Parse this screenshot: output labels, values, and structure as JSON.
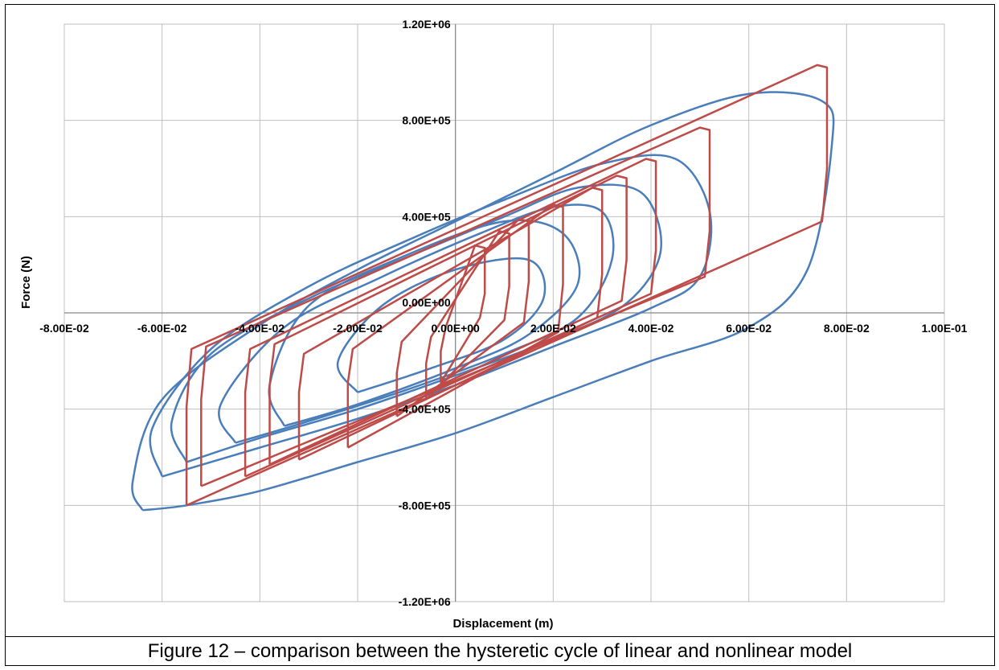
{
  "caption": "Figure 12 – comparison between the hysteretic cycle of linear and nonlinear model",
  "chart_data": {
    "type": "line",
    "title": "",
    "xlabel": "Displacement (m)",
    "ylabel": "Force (N)",
    "xlim": [
      -0.08,
      0.1
    ],
    "ylim": [
      -1200000,
      1200000
    ],
    "x_ticks": [
      -0.08,
      -0.06,
      -0.04,
      -0.02,
      0.0,
      0.02,
      0.04,
      0.06,
      0.08,
      0.1
    ],
    "x_tick_labels": [
      "-8.00E-02",
      "-6.00E-02",
      "-4.00E-02",
      "-2.00E-02",
      "0.00E+00",
      "2.00E-02",
      "4.00E-02",
      "6.00E-02",
      "8.00E-02",
      "1.00E-01"
    ],
    "y_ticks": [
      -1200000,
      -800000,
      -400000,
      0,
      400000,
      800000,
      1200000
    ],
    "y_tick_labels": [
      "-1.20E+06",
      "-8.00E+05",
      "-4.00E+05",
      "0.00E+00",
      "4.00E+05",
      "8.00E+05",
      "1.20E+06"
    ],
    "grid": true,
    "legend": "none",
    "colors": {
      "series_1": "#4a7ebb",
      "series_2": "#be4b48"
    },
    "series": [
      {
        "style": "smooth-loops",
        "loops": [
          {
            "x": [
              -0.064,
              -0.055,
              -0.04,
              -0.02,
              0.0,
              0.02,
              0.04,
              0.06,
              0.072,
              0.077,
              0.075,
              0.06,
              0.04,
              0.02,
              0.0,
              -0.02,
              -0.04,
              -0.06,
              -0.066,
              -0.064
            ],
            "y": [
              -820000,
              -800000,
              -740000,
              -620000,
              -500000,
              -350000,
              -200000,
              -60000,
              180000,
              700000,
              880000,
              910000,
              780000,
              580000,
              380000,
              180000,
              -50000,
              -360000,
              -700000,
              -820000
            ]
          },
          {
            "x": [
              -0.06,
              -0.04,
              -0.02,
              0.0,
              0.02,
              0.04,
              0.05,
              0.052,
              0.045,
              0.03,
              0.01,
              -0.01,
              -0.03,
              -0.05,
              -0.062,
              -0.06
            ],
            "y": [
              -680000,
              -560000,
              -440000,
              -300000,
              -140000,
              20000,
              150000,
              420000,
              640000,
              620000,
              470000,
              300000,
              110000,
              -150000,
              -480000,
              -680000
            ]
          },
          {
            "x": [
              -0.055,
              -0.04,
              -0.02,
              0.0,
              0.02,
              0.035,
              0.042,
              0.038,
              0.025,
              0.01,
              -0.01,
              -0.03,
              -0.05,
              -0.058,
              -0.055
            ],
            "y": [
              -620000,
              -520000,
              -400000,
              -260000,
              -110000,
              40000,
              260000,
              500000,
              520000,
              400000,
              230000,
              60000,
              -170000,
              -450000,
              -620000
            ]
          },
          {
            "x": [
              -0.045,
              -0.03,
              -0.01,
              0.01,
              0.025,
              0.032,
              0.03,
              0.02,
              0.005,
              -0.015,
              -0.035,
              -0.048,
              -0.045
            ],
            "y": [
              -540000,
              -450000,
              -320000,
              -170000,
              -20000,
              220000,
              420000,
              440000,
              330000,
              150000,
              -60000,
              -380000,
              -540000
            ]
          },
          {
            "x": [
              -0.035,
              -0.02,
              0.0,
              0.015,
              0.025,
              0.022,
              0.01,
              -0.01,
              -0.03,
              -0.038,
              -0.035
            ],
            "y": [
              -470000,
              -380000,
              -230000,
              -90000,
              120000,
              330000,
              380000,
              240000,
              30000,
              -300000,
              -470000
            ]
          },
          {
            "x": [
              -0.02,
              -0.005,
              0.01,
              0.018,
              0.015,
              0.0,
              -0.015,
              -0.024,
              -0.02
            ],
            "y": [
              -330000,
              -230000,
              -110000,
              60000,
              220000,
              180000,
              30000,
              -200000,
              -330000
            ]
          }
        ]
      },
      {
        "style": "rect-loops",
        "loops": [
          {
            "x": [
              -0.055,
              0.075,
              0.076,
              0.076,
              0.074,
              -0.054,
              -0.055,
              -0.055
            ],
            "y": [
              -800000,
              380000,
              600000,
              1020000,
              1030000,
              -150000,
              -390000,
              -800000
            ]
          },
          {
            "x": [
              -0.052,
              0.051,
              0.052,
              0.052,
              0.05,
              -0.051,
              -0.052,
              -0.052
            ],
            "y": [
              -720000,
              150000,
              340000,
              760000,
              770000,
              -140000,
              -360000,
              -720000
            ]
          },
          {
            "x": [
              -0.043,
              0.04,
              0.041,
              0.041,
              0.039,
              -0.042,
              -0.043,
              -0.043
            ],
            "y": [
              -680000,
              80000,
              260000,
              630000,
              640000,
              -150000,
              -330000,
              -680000
            ]
          },
          {
            "x": [
              -0.038,
              0.034,
              0.035,
              0.035,
              0.033,
              -0.037,
              -0.038,
              -0.038
            ],
            "y": [
              -630000,
              50000,
              220000,
              560000,
              570000,
              -130000,
              -300000,
              -630000
            ]
          },
          {
            "x": [
              -0.032,
              0.029,
              0.03,
              0.03,
              0.028,
              -0.031,
              -0.032,
              -0.032
            ],
            "y": [
              -610000,
              -20000,
              160000,
              510000,
              520000,
              -170000,
              -330000,
              -610000
            ]
          },
          {
            "x": [
              -0.022,
              0.021,
              0.022,
              0.022,
              0.02,
              -0.021,
              -0.022,
              -0.022
            ],
            "y": [
              -560000,
              -80000,
              120000,
              440000,
              450000,
              -150000,
              -290000,
              -560000
            ]
          },
          {
            "x": [
              -0.012,
              0.014,
              0.015,
              0.015,
              0.013,
              -0.011,
              -0.012,
              -0.012
            ],
            "y": [
              -430000,
              -40000,
              130000,
              380000,
              390000,
              -120000,
              -250000,
              -430000
            ]
          },
          {
            "x": [
              -0.006,
              0.01,
              0.011,
              0.011,
              0.009,
              -0.005,
              -0.006,
              -0.006
            ],
            "y": [
              -360000,
              -30000,
              110000,
              330000,
              340000,
              -100000,
              -210000,
              -360000
            ]
          },
          {
            "x": [
              -0.003,
              0.005,
              0.006,
              0.006,
              0.004,
              -0.002,
              -0.003,
              -0.003
            ],
            "y": [
              -290000,
              -20000,
              80000,
              270000,
              280000,
              -60000,
              -160000,
              -290000
            ]
          }
        ]
      }
    ]
  }
}
